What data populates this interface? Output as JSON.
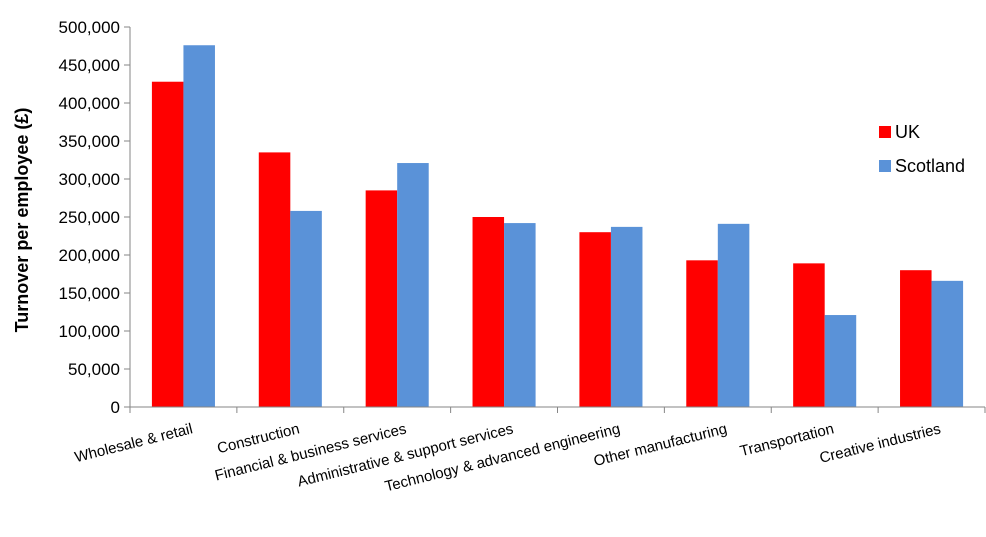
{
  "chart_data": {
    "type": "bar",
    "title": "",
    "xlabel": "",
    "ylabel": "Turnover per employee (£)",
    "ylim": [
      0,
      500000
    ],
    "yticks": [
      "0",
      "50,000",
      "100,000",
      "150,000",
      "200,000",
      "250,000",
      "300,000",
      "350,000",
      "400,000",
      "450,000",
      "500,000"
    ],
    "categories": [
      "Wholesale & retail",
      "Construction",
      "Financial & business services",
      "Administrative & support services",
      "Technology & advanced engineering",
      "Other manufacturing",
      "Transportation",
      "Creative industries"
    ],
    "series": [
      {
        "name": "UK",
        "color": "#ff0000",
        "values": [
          428000,
          335000,
          285000,
          250000,
          230000,
          193000,
          189000,
          180000
        ]
      },
      {
        "name": "Scotland",
        "color": "#5a92d8",
        "values": [
          476000,
          258000,
          321000,
          242000,
          237000,
          241000,
          121000,
          166000
        ]
      }
    ],
    "grid": false,
    "legend_position": "right"
  }
}
